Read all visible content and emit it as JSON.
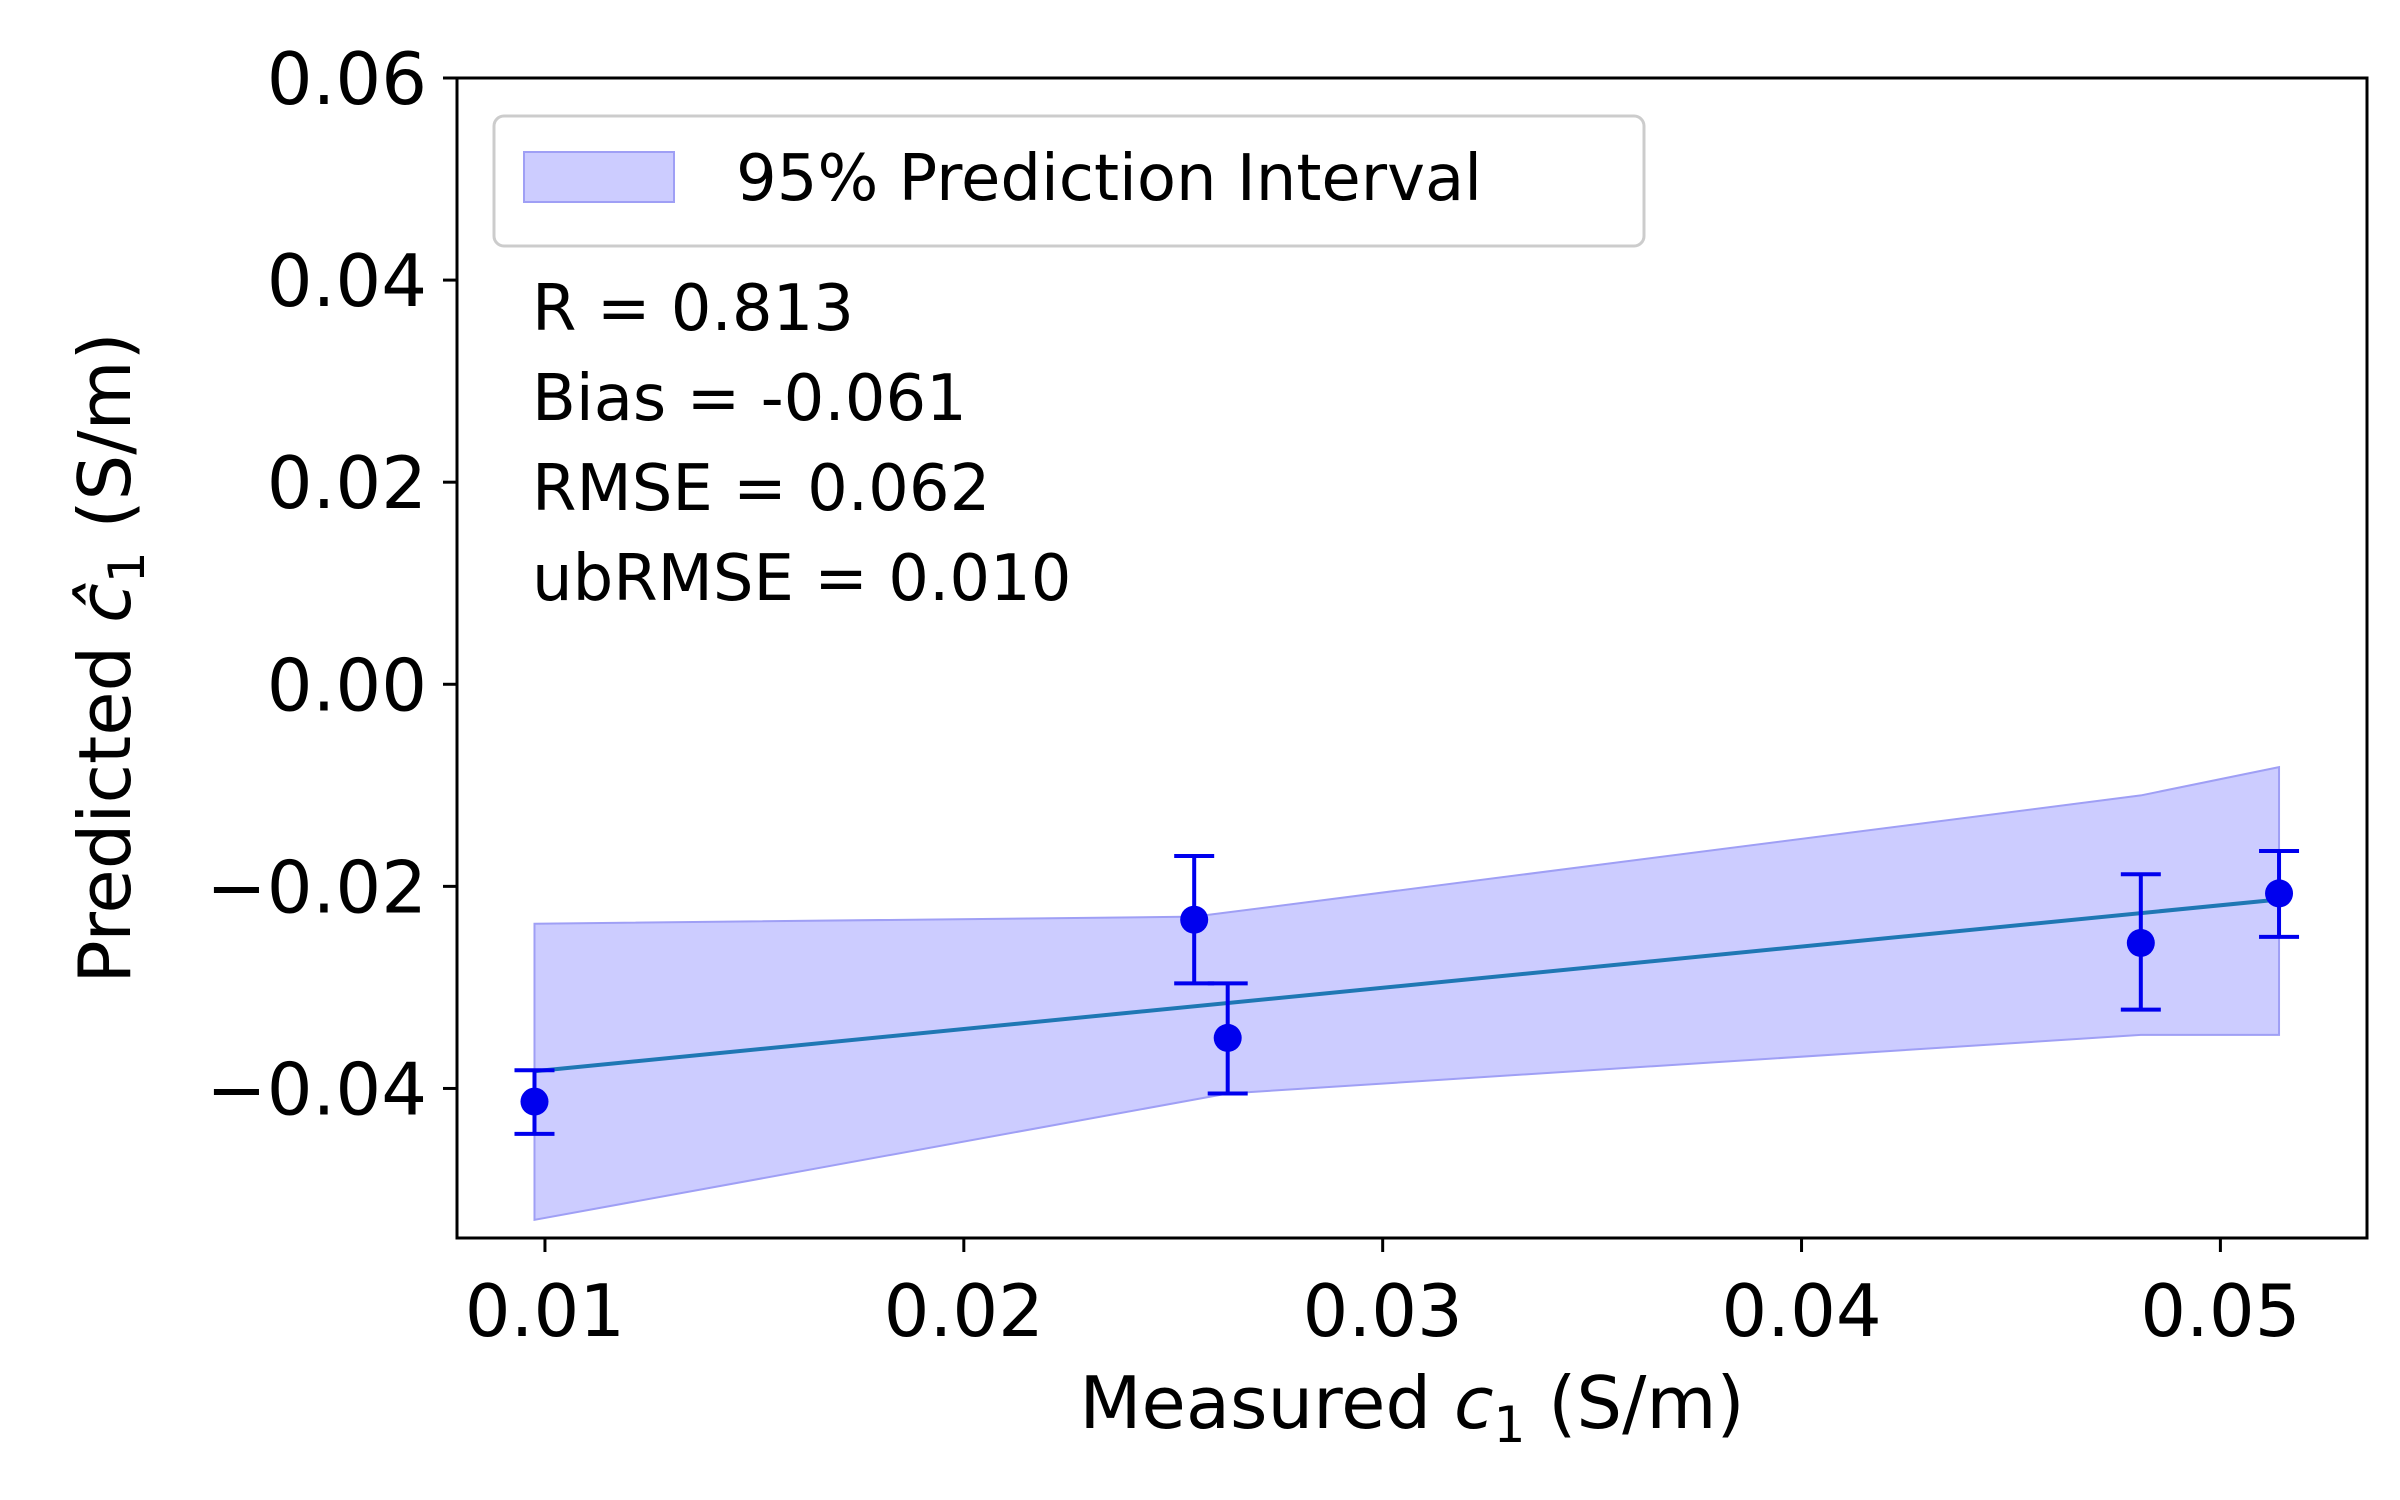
{
  "chart_data": {
    "type": "scatter",
    "title": "",
    "xlabel_prefix": "Measured ",
    "xlabel_var": "c",
    "xlabel_sub": "1",
    "xlabel_suffix": " (S/m)",
    "ylabel_prefix": "Predicted ",
    "ylabel_var": "ĉ",
    "ylabel_sub": "1",
    "ylabel_suffix": "  (S/m)",
    "xlim": [
      0.0079,
      0.0535
    ],
    "ylim": [
      -0.0548,
      0.06
    ],
    "xticks": [
      0.01,
      0.02,
      0.03,
      0.04,
      0.05
    ],
    "xtick_labels": [
      "0.01",
      "0.02",
      "0.03",
      "0.04",
      "0.05"
    ],
    "yticks": [
      -0.04,
      -0.02,
      0.0,
      0.02,
      0.04,
      0.06
    ],
    "ytick_labels": [
      "−0.04",
      "−0.02",
      "0.00",
      "0.02",
      "0.04",
      "0.06"
    ],
    "points": [
      {
        "x": 0.00975,
        "y": -0.0413,
        "err_low": -0.0445,
        "err_high": -0.0382
      },
      {
        "x": 0.0255,
        "y": -0.0233,
        "err_low": -0.0296,
        "err_high": -0.017
      },
      {
        "x": 0.0263,
        "y": -0.035,
        "err_low": -0.0405,
        "err_high": -0.0296
      },
      {
        "x": 0.0481,
        "y": -0.0256,
        "err_low": -0.0322,
        "err_high": -0.0188
      },
      {
        "x": 0.0514,
        "y": -0.0207,
        "err_low": -0.025,
        "err_high": -0.0165
      }
    ],
    "fit_line": [
      {
        "x": 0.00975,
        "y": -0.0383
      },
      {
        "x": 0.0514,
        "y": -0.0213
      }
    ],
    "prediction_interval": {
      "upper": [
        {
          "x": 0.00975,
          "y": -0.0237
        },
        {
          "x": 0.0255,
          "y": -0.023
        },
        {
          "x": 0.0481,
          "y": -0.011
        },
        {
          "x": 0.0514,
          "y": -0.0082
        }
      ],
      "lower": [
        {
          "x": 0.00975,
          "y": -0.053
        },
        {
          "x": 0.0263,
          "y": -0.0405
        },
        {
          "x": 0.0481,
          "y": -0.0347
        },
        {
          "x": 0.0514,
          "y": -0.0347
        }
      ]
    },
    "legend": {
      "label": "95% Prediction Interval",
      "placement": "top-left"
    },
    "stats": [
      "R = 0.813",
      "Bias = -0.061",
      "RMSE = 0.062",
      "ubRMSE = 0.010"
    ],
    "colors": {
      "points": "#0000ee",
      "fit_line": "#1f77b4",
      "band_fill": "#ccccff",
      "band_edge": "#9f9ff5"
    }
  }
}
